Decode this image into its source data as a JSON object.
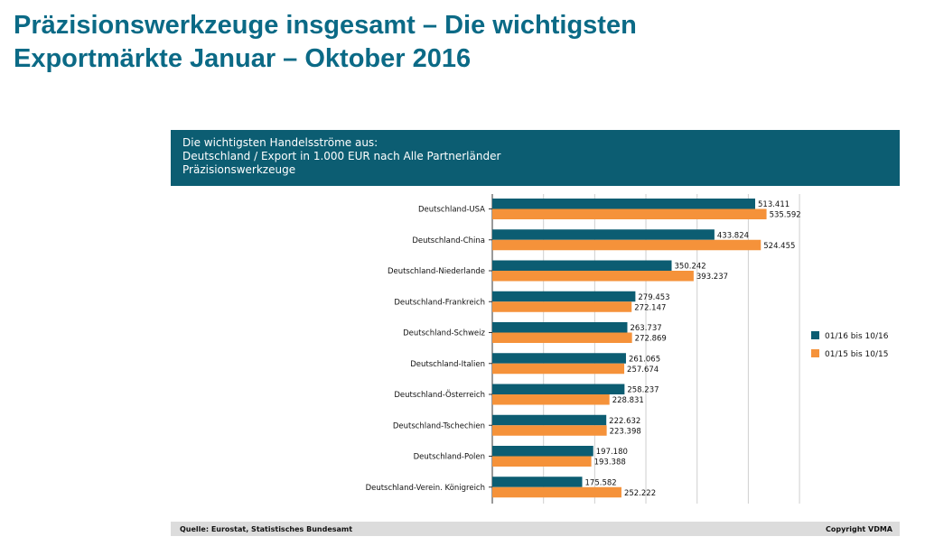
{
  "slide": {
    "title_line1": "Präzisionswerkzeuge insgesamt – Die wichtigsten",
    "title_line2": "Exportmärkte Januar – Oktober 2016"
  },
  "chart_header": {
    "line1": "Die wichtigsten Handelsströme aus:",
    "line2": "Deutschland / Export in 1.000 EUR nach Alle Partnerländer",
    "line3": "Präzisionswerkzeuge"
  },
  "footer": {
    "source": "Quelle: Eurostat, Statistisches Bundesamt",
    "copyright": "Copyright VDMA"
  },
  "colors": {
    "series1": "#0c5d72",
    "series2": "#f5923a",
    "header_bg": "#0c5d72",
    "title": "#0b6a86"
  },
  "chart_data": {
    "type": "bar",
    "orientation": "horizontal",
    "categories": [
      "Deutschland-USA",
      "Deutschland-China",
      "Deutschland-Niederlande",
      "Deutschland-Frankreich",
      "Deutschland-Schweiz",
      "Deutschland-Italien",
      "Deutschland-Österreich",
      "Deutschland-Tschechien",
      "Deutschland-Polen",
      "Deutschland-Verein. Königreich"
    ],
    "series": [
      {
        "name": "01/16 bis 10/16",
        "color": "#0c5d72",
        "values": [
          513411,
          433824,
          350242,
          279453,
          263737,
          261065,
          258237,
          222632,
          197180,
          175582
        ],
        "labels": [
          "513.411",
          "433.824",
          "350.242",
          "279.453",
          "263.737",
          "261.065",
          "258.237",
          "222.632",
          "197.180",
          "175.582"
        ]
      },
      {
        "name": "01/15 bis 10/15",
        "color": "#f5923a",
        "values": [
          535592,
          524455,
          393237,
          272147,
          272869,
          257674,
          228831,
          223398,
          193388,
          252222
        ],
        "labels": [
          "535.592",
          "524.455",
          "393.237",
          "272.147",
          "272.869",
          "257.674",
          "228.831",
          "223.398",
          "193.388",
          "252.222"
        ]
      }
    ],
    "xlim": [
      0,
      600000
    ],
    "grid": true,
    "legend_position": "right"
  }
}
